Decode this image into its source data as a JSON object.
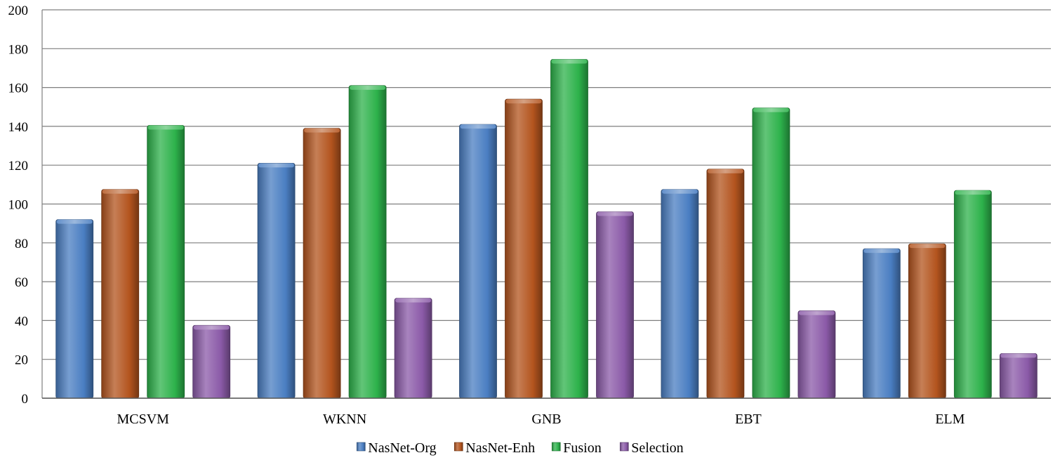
{
  "chart_data": {
    "type": "bar",
    "title": "",
    "xlabel": "",
    "ylabel": "",
    "ylim": [
      0,
      200
    ],
    "yticks": [
      0,
      20,
      40,
      60,
      80,
      100,
      120,
      140,
      160,
      180,
      200
    ],
    "grid": true,
    "legend_position": "bottom",
    "categories": [
      "MCSVM",
      "WKNN",
      "GNB",
      "EBT",
      "ELM"
    ],
    "series": [
      {
        "name": "NasNet-Org",
        "color": "#4a7ec2",
        "values": [
          92,
          121,
          141,
          107.5,
          77
        ]
      },
      {
        "name": "NasNet-Enh",
        "color": "#b3541e",
        "values": [
          107.5,
          139,
          154,
          118,
          79.5
        ]
      },
      {
        "name": "Fusion",
        "color": "#2db24b",
        "values": [
          140.5,
          161,
          174.5,
          149.5,
          107
        ]
      },
      {
        "name": "Selection",
        "color": "#8b5aa8",
        "values": [
          37.5,
          51.5,
          96,
          45,
          23
        ]
      }
    ]
  }
}
